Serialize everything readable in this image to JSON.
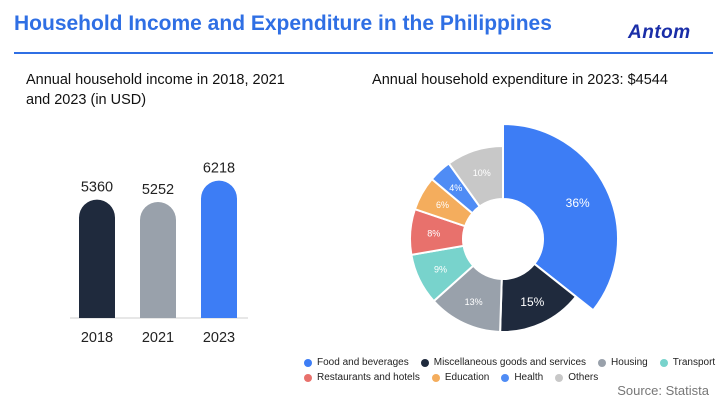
{
  "header": {
    "title": "Household Income and Expenditure in the Philippines",
    "logo_text": "Antom",
    "accent_color": "#2f6fe4"
  },
  "chart_data": [
    {
      "type": "bar",
      "title": "Annual household income in 2018, 2021 and 2023 (in USD)",
      "categories": [
        "2018",
        "2021",
        "2023"
      ],
      "values": [
        5360,
        5252,
        6218
      ],
      "colors": [
        "#1f2a3d",
        "#99a1ab",
        "#3d7df5"
      ],
      "ylim": [
        0,
        6700
      ]
    },
    {
      "type": "pie",
      "title": "Annual household expenditure in 2023: $4544",
      "labels": [
        "Food and beverages",
        "Miscellaneous goods and services",
        "Housing",
        "Transport",
        "Restaurants and hotels",
        "Education",
        "Health",
        "Others"
      ],
      "values": [
        36,
        15,
        13,
        9,
        8,
        6,
        4,
        10
      ],
      "value_labels": [
        "36%",
        "15%",
        "13%",
        "9%",
        "8%",
        "6%",
        "4%",
        "10%"
      ],
      "colors": [
        "#3d7df5",
        "#1f2a3d",
        "#99a1ab",
        "#78d3cc",
        "#e8716c",
        "#f4ad5d",
        "#4f8cf5",
        "#c8c8c8"
      ]
    }
  ],
  "legend": {
    "rows": [
      [
        "Food and beverages",
        "Miscellaneous goods and services",
        "Housing",
        "Transport"
      ],
      [
        "Restaurants and hotels",
        "Education",
        "Health",
        "Others"
      ]
    ]
  },
  "footer": {
    "source": "Source: Statista"
  }
}
